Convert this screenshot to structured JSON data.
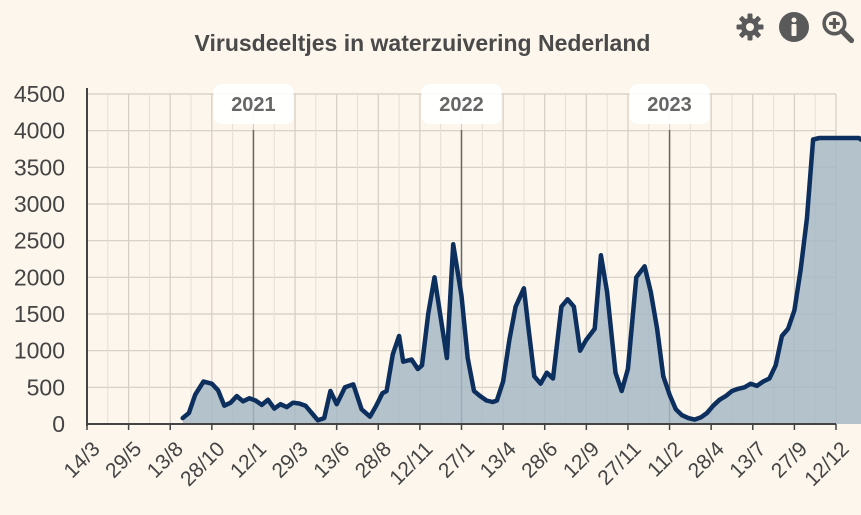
{
  "chart_data": {
    "type": "area",
    "title": "Virusdeeltjes in waterzuivering Nederland",
    "xlabel": "",
    "ylabel": "",
    "ylim": [
      0,
      4500
    ],
    "yticks": [
      0,
      500,
      1000,
      1500,
      2000,
      2500,
      3000,
      3500,
      4000,
      4500
    ],
    "xticks": [
      "14/3",
      "29/5",
      "13/8",
      "28/10",
      "12/1",
      "29/3",
      "13/6",
      "28/8",
      "12/11",
      "27/1",
      "13/4",
      "28/6",
      "12/9",
      "27/11",
      "11/2",
      "28/4",
      "13/7",
      "27/9",
      "12/12"
    ],
    "year_markers": [
      {
        "label": "2021",
        "tick_index": 4
      },
      {
        "label": "2022",
        "tick_index": 9
      },
      {
        "label": "2023",
        "tick_index": 14
      }
    ],
    "grid": true,
    "series": [
      {
        "name": "Virusdeeltjes",
        "color": "#0d2f5e",
        "fill": "#a6b8c6",
        "x": [
          2.3,
          2.45,
          2.6,
          2.8,
          3.0,
          3.15,
          3.3,
          3.45,
          3.6,
          3.75,
          3.9,
          4.05,
          4.2,
          4.35,
          4.5,
          4.65,
          4.8,
          4.95,
          5.1,
          5.25,
          5.4,
          5.55,
          5.7,
          5.85,
          6.0,
          6.2,
          6.4,
          6.6,
          6.8,
          6.95,
          7.1,
          7.2,
          7.35,
          7.5,
          7.6,
          7.8,
          7.95,
          8.05,
          8.2,
          8.35,
          8.5,
          8.65,
          8.8,
          9.0,
          9.15,
          9.3,
          9.45,
          9.6,
          9.75,
          9.85,
          10.0,
          10.15,
          10.3,
          10.5,
          10.6,
          10.75,
          10.9,
          11.05,
          11.2,
          11.4,
          11.55,
          11.7,
          11.85,
          12.0,
          12.2,
          12.35,
          12.5,
          12.7,
          12.85,
          13.0,
          13.2,
          13.4,
          13.55,
          13.7,
          13.85,
          14.0,
          14.15,
          14.3,
          14.45,
          14.6,
          14.75,
          14.9,
          15.05,
          15.2,
          15.35,
          15.5,
          15.65,
          15.8,
          15.95,
          16.1,
          16.25,
          16.4,
          16.55,
          16.7,
          16.85,
          17.0,
          17.15,
          17.3,
          17.45,
          17.6,
          17.75,
          17.9,
          18.05,
          18.15,
          18.25,
          18.35,
          18.45,
          18.55,
          18.6
        ],
        "y": [
          80,
          150,
          400,
          580,
          550,
          460,
          250,
          290,
          380,
          310,
          350,
          320,
          260,
          330,
          210,
          270,
          230,
          290,
          280,
          250,
          150,
          50,
          80,
          450,
          270,
          500,
          540,
          200,
          100,
          250,
          420,
          450,
          950,
          1200,
          850,
          880,
          750,
          800,
          1500,
          2000,
          1450,
          900,
          2450,
          1750,
          900,
          450,
          380,
          320,
          300,
          320,
          580,
          1150,
          1600,
          1850,
          1350,
          650,
          550,
          700,
          620,
          1600,
          1700,
          1600,
          1000,
          1150,
          1300,
          2300,
          1800,
          700,
          450,
          750,
          2000,
          2150,
          1800,
          1300,
          650,
          400,
          200,
          120,
          80,
          60,
          90,
          150,
          250,
          330,
          380,
          450,
          480,
          500,
          550,
          520,
          580,
          620,
          800,
          1200,
          1300,
          1550,
          2100,
          2800,
          3880,
          3900,
          3900,
          3900,
          3900,
          3900,
          3900,
          3900,
          3900,
          3900,
          3880
        ]
      }
    ]
  },
  "toolbar": {
    "settings_icon": "gear-icon",
    "info_icon": "info-icon",
    "zoom_icon": "zoom-in-icon"
  }
}
